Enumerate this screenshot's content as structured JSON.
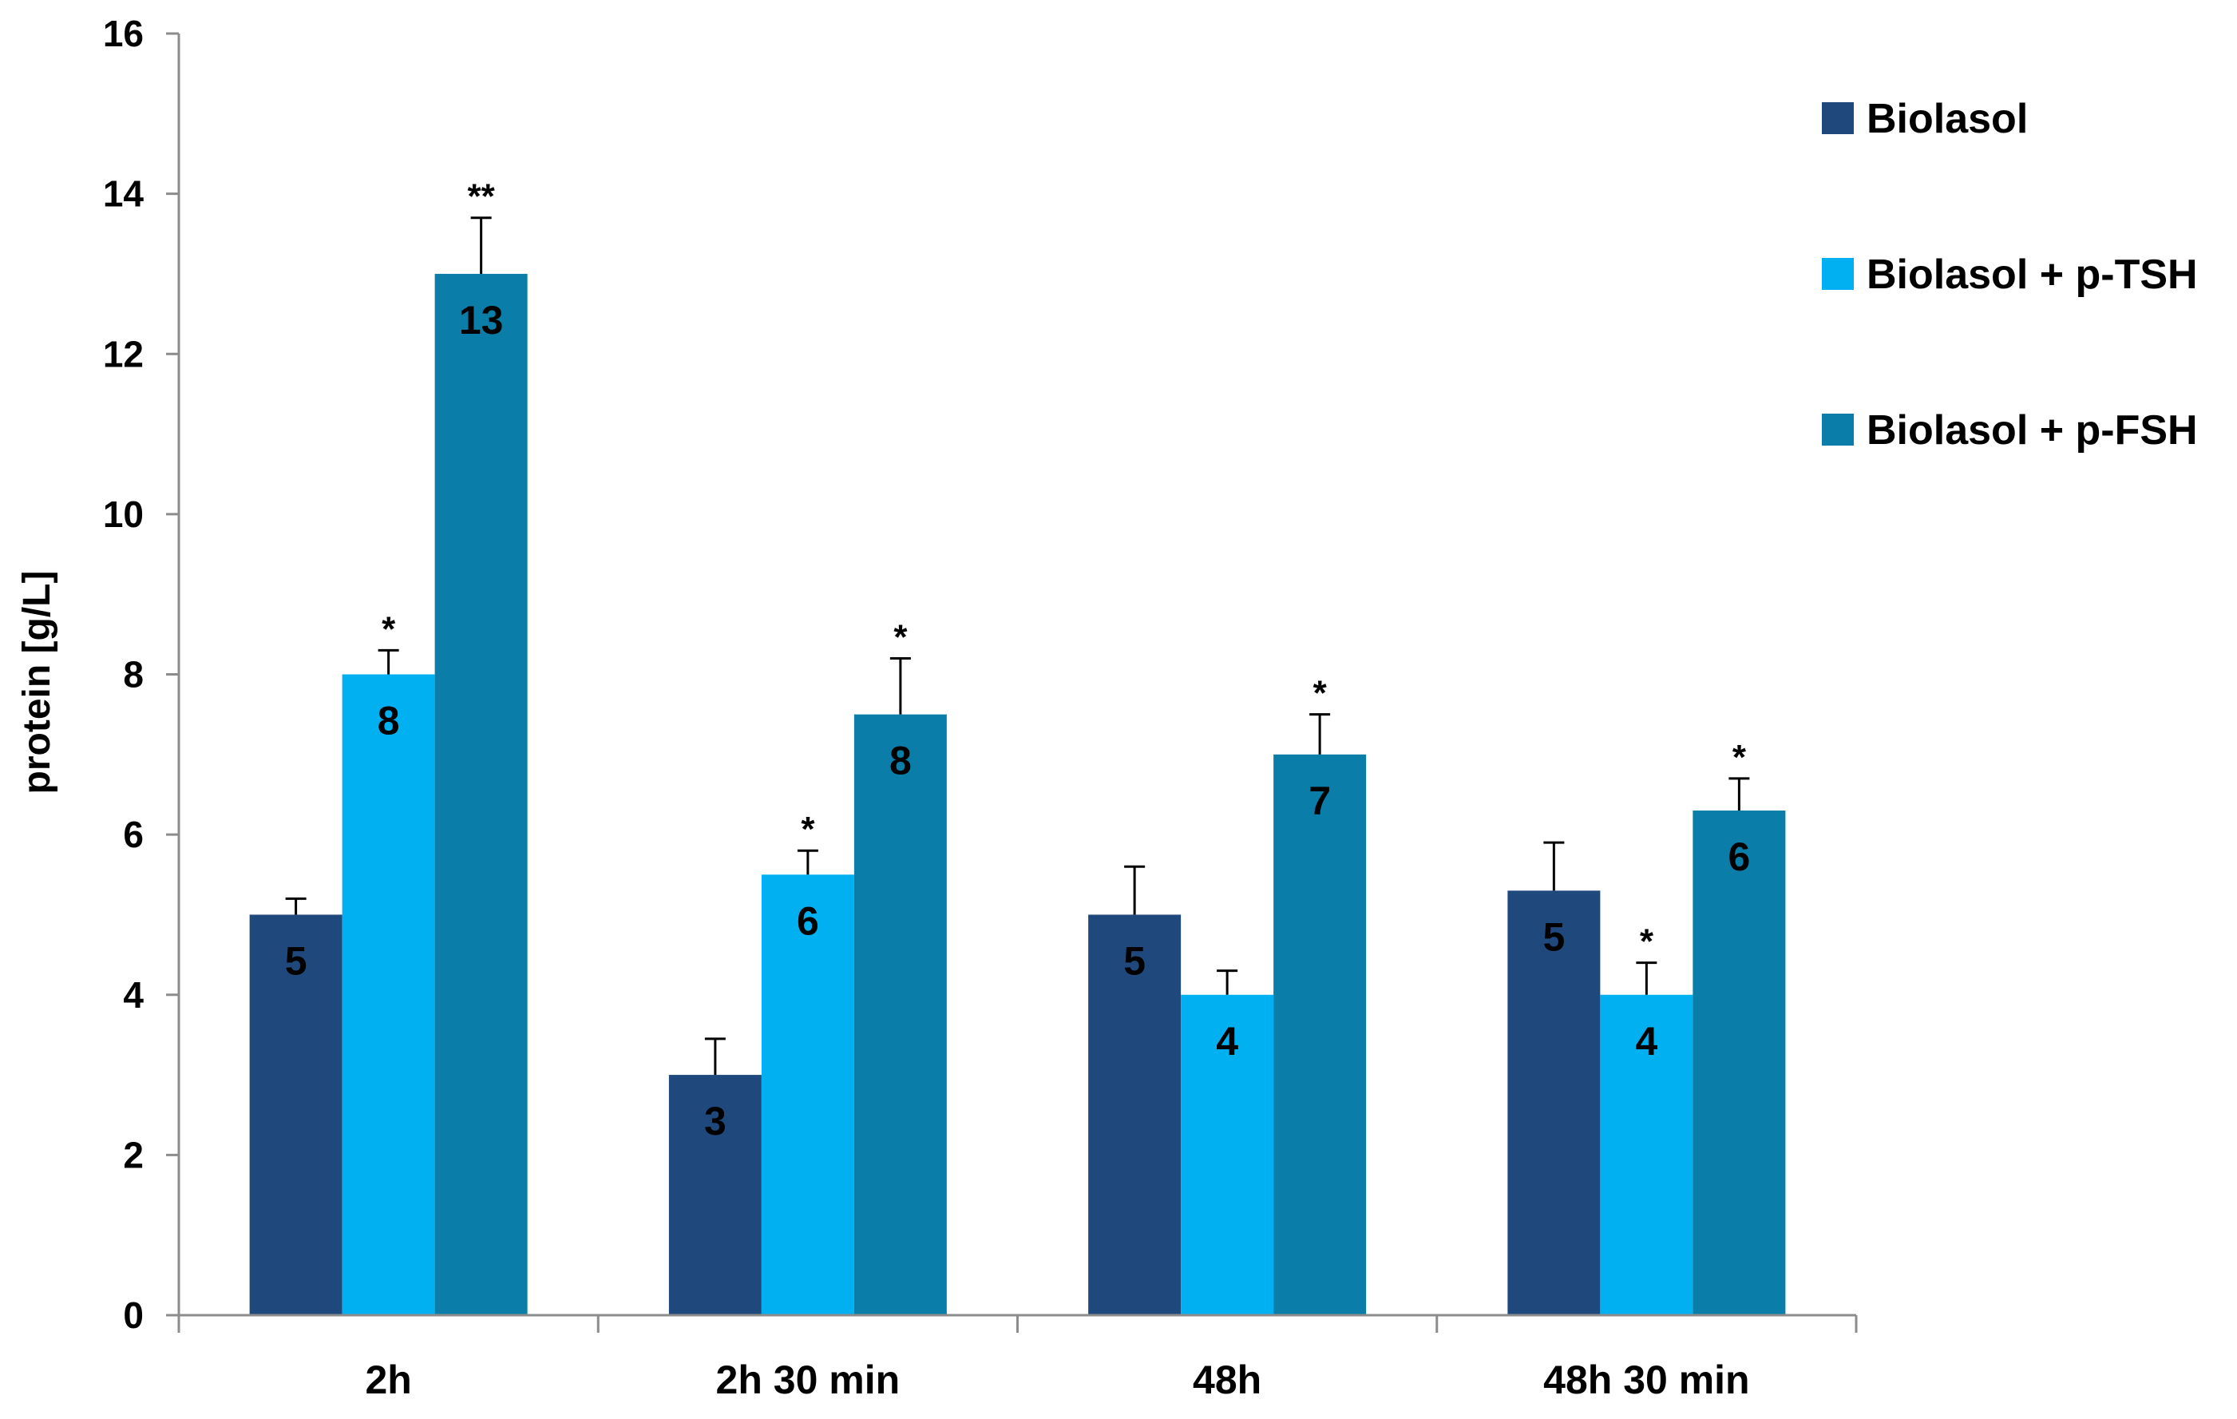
{
  "chart_data": {
    "type": "bar",
    "title": "",
    "xlabel": "",
    "ylabel": "protein [g/L]",
    "ylim": [
      0,
      16
    ],
    "ytick_step": 2,
    "yticks": [
      "0",
      "2",
      "4",
      "6",
      "8",
      "10",
      "12",
      "14",
      "16"
    ],
    "grid": false,
    "legend_position": "top-right",
    "categories": [
      "2h",
      "2h 30 min",
      "48h",
      "48h 30 min"
    ],
    "series": [
      {
        "name": "Biolasol",
        "color": "#1f497d",
        "values": [
          5,
          3,
          5,
          5.3
        ],
        "errors": [
          0.2,
          0.45,
          0.6,
          0.6
        ],
        "labels": [
          "5",
          "3",
          "5",
          "5"
        ],
        "significance": [
          "",
          "",
          "",
          ""
        ]
      },
      {
        "name": "Biolasol + p-TSH",
        "color": "#00b0f0",
        "values": [
          8,
          5.5,
          4,
          4
        ],
        "errors": [
          0.3,
          0.3,
          0.3,
          0.4
        ],
        "labels": [
          "8",
          "6",
          "4",
          "4"
        ],
        "significance": [
          "*",
          "*",
          "",
          "*"
        ]
      },
      {
        "name": "Biolasol + p-FSH",
        "color": "#0a7ea8",
        "values": [
          13,
          7.5,
          7,
          6.3
        ],
        "errors": [
          0.7,
          0.7,
          0.5,
          0.4
        ],
        "labels": [
          "13",
          "8",
          "7",
          "6"
        ],
        "significance": [
          "**",
          "*",
          "*",
          "*"
        ]
      }
    ]
  }
}
